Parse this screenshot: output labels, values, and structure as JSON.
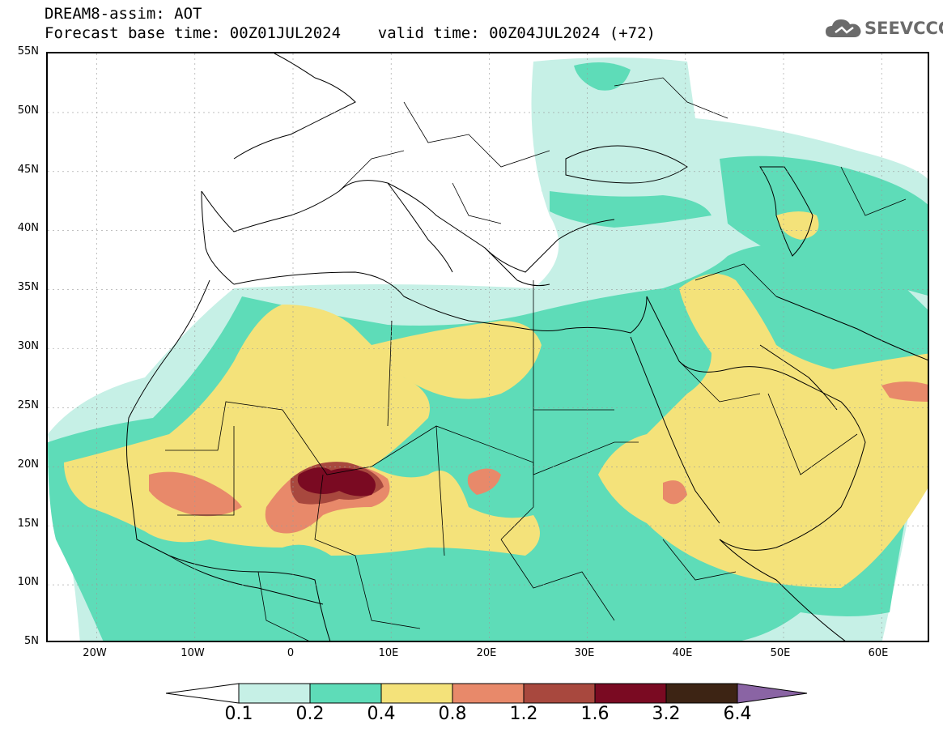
{
  "header": {
    "title_line1": "DREAM8-assim: AOT",
    "title_line2": "Forecast base time: 00Z01JUL2024    valid time: 00Z04JUL2024 (+72)"
  },
  "logo": {
    "text": "SEEVCCC",
    "icon": "cloud-icon"
  },
  "map": {
    "lat_labels": [
      "55N",
      "50N",
      "45N",
      "40N",
      "35N",
      "30N",
      "25N",
      "20N",
      "15N",
      "10N",
      "5N"
    ],
    "lon_labels": [
      "20W",
      "10W",
      "0",
      "10E",
      "20E",
      "30E",
      "40E",
      "50E",
      "60E"
    ],
    "lat_range": [
      5,
      55
    ],
    "lon_range": [
      -25,
      65
    ],
    "grid": true
  },
  "legend": {
    "levels": [
      "0.1",
      "0.2",
      "0.4",
      "0.8",
      "1.2",
      "1.6",
      "3.2",
      "6.4"
    ],
    "colors": [
      "#ffffff",
      "#c6f0e6",
      "#5edcb8",
      "#f4e27a",
      "#e8896a",
      "#a8483e",
      "#7a0a22",
      "#3d2414",
      "#8a64a4"
    ]
  }
}
